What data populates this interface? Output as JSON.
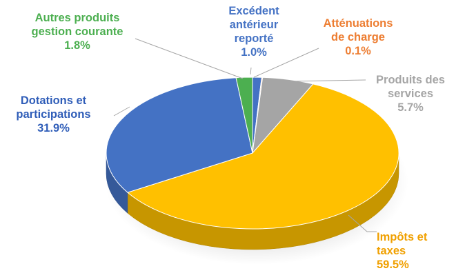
{
  "chart_data": {
    "type": "pie",
    "style": "3d",
    "slices": [
      {
        "label": "Excédent antérieur reporté",
        "lines": [
          "Excédent",
          "antérieur",
          "reporté"
        ],
        "value": 1.0,
        "value_label": "1.0%",
        "color": "#4472c4",
        "label_color": "#4472c4"
      },
      {
        "label": "Atténuations de charge",
        "lines": [
          "Atténuations",
          "de charge"
        ],
        "value": 0.1,
        "value_label": "0.1%",
        "color": "#ed7d31",
        "label_color": "#ed7d31"
      },
      {
        "label": "Produits des services",
        "lines": [
          "Produits des",
          "services"
        ],
        "value": 5.7,
        "value_label": "5.7%",
        "color": "#a5a5a5",
        "label_color": "#a5a5a5"
      },
      {
        "label": "Impôts et taxes",
        "lines": [
          "Impôts et",
          "taxes"
        ],
        "value": 59.5,
        "value_label": "59.5%",
        "color": "#ffc000",
        "label_color": "#f0a000"
      },
      {
        "label": "Dotations et participations",
        "lines": [
          "Dotations et",
          "participations"
        ],
        "value": 31.9,
        "value_label": "31.9%",
        "color": "#4472c4",
        "label_color": "#2f5db8"
      },
      {
        "label": "Autres produits gestion courante",
        "lines": [
          "Autres produits",
          "gestion courante"
        ],
        "value": 1.8,
        "value_label": "1.8%",
        "color": "#4caf50",
        "label_color": "#4caf50"
      }
    ]
  }
}
